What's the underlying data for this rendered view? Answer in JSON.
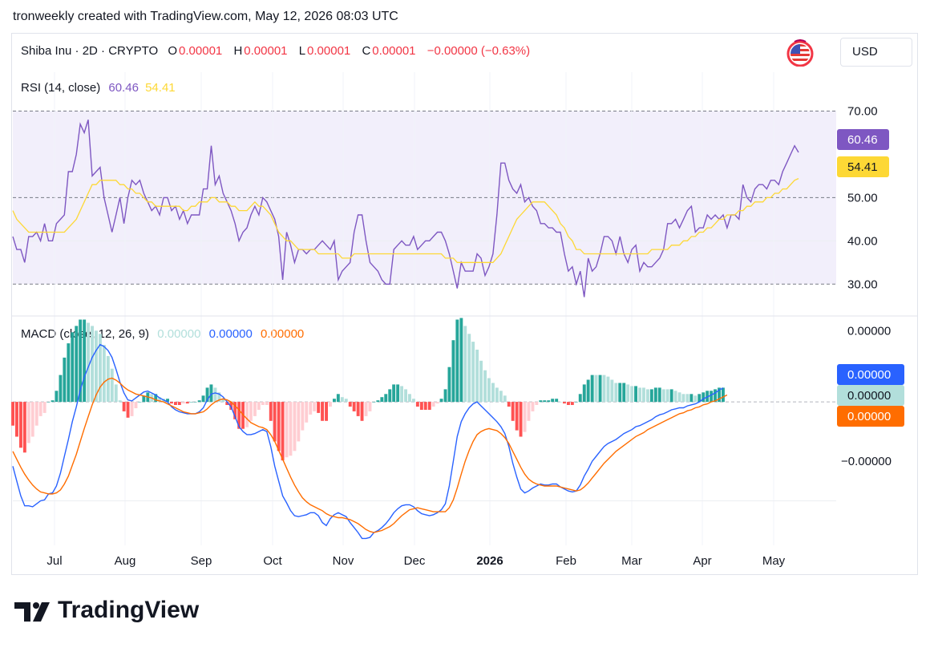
{
  "header": {
    "attribution": "tronweekly created with TradingView.com, May 12, 2026 08:03 UTC"
  },
  "symbol": {
    "title": "Shiba Inu · 2D · CRYPTO",
    "o_label": "O",
    "o_value": "0.00001",
    "h_label": "H",
    "h_value": "0.00001",
    "l_label": "L",
    "l_value": "0.00001",
    "c_label": "C",
    "c_value": "0.00001",
    "change": "−0.00000 (−0.63%)",
    "currency": "USD",
    "flag_icon": "us-flag-icon"
  },
  "colors": {
    "rsi_line": "#7e57c2",
    "rsi_ma": "#fdd835",
    "rsi_band": "#f2effb",
    "macd_line": "#2962ff",
    "signal_line": "#ff6d00",
    "hist_up_strong": "#26a69a",
    "hist_up_weak": "#b2dfdb",
    "hist_down_strong": "#ff5252",
    "hist_down_weak": "#ffcdd2",
    "down": "#f23645"
  },
  "brand": {
    "name": "TradingView"
  },
  "chart_data": [
    {
      "type": "line",
      "title": "RSI (14, close)",
      "legend_values": [
        "60.46",
        "54.41"
      ],
      "y_ticks": [
        "70.00",
        "50.00",
        "40.00",
        "30.00"
      ],
      "ylim": [
        23,
        79
      ],
      "band": [
        30,
        70
      ],
      "midline": 50,
      "last_labels": [
        {
          "text": "60.46",
          "color": "#7e57c2",
          "text_color": "#ffffff"
        },
        {
          "text": "54.41",
          "color": "#fdd835",
          "text_color": "#131722"
        }
      ],
      "series": [
        {
          "values": [
            41,
            38,
            38,
            35,
            41,
            41,
            42,
            40,
            44,
            40,
            40,
            44,
            45,
            46,
            56,
            56,
            60,
            67,
            65,
            68,
            55,
            56,
            57,
            50,
            46,
            42,
            46,
            50,
            44,
            50,
            54,
            53,
            54,
            51,
            49,
            47,
            48,
            46,
            50,
            50,
            47,
            48,
            45,
            47,
            44,
            46,
            46,
            46,
            52,
            52,
            62,
            53,
            55,
            51,
            49,
            47,
            44,
            40,
            42,
            43,
            46,
            48,
            46,
            50,
            49,
            47,
            45,
            41,
            31,
            42,
            39,
            35,
            38,
            38,
            37,
            38,
            38,
            39,
            40,
            39,
            38,
            40,
            31,
            33,
            34,
            35,
            42,
            46,
            46,
            40,
            35,
            34,
            33,
            31,
            30,
            30,
            38,
            39,
            40,
            39,
            39,
            41,
            38,
            39,
            40,
            40,
            41,
            42,
            42,
            40,
            37,
            33,
            29,
            35,
            33,
            33,
            33,
            37,
            36,
            32,
            34,
            37,
            46,
            58,
            58,
            54,
            52,
            51,
            53,
            49,
            50,
            48,
            47,
            44,
            44,
            43,
            43,
            42,
            42,
            37,
            33,
            34,
            30,
            33,
            27,
            36,
            33,
            34,
            37,
            41,
            41,
            40,
            37,
            41,
            37,
            35,
            38,
            39,
            33,
            35,
            34,
            34,
            35,
            36,
            38,
            44,
            44,
            45,
            43,
            45,
            47,
            48,
            42,
            43,
            43,
            46,
            45,
            46,
            45,
            46,
            43,
            46,
            46,
            45,
            53,
            50,
            49,
            52,
            53,
            53,
            52,
            54,
            54,
            53,
            56,
            58,
            60,
            62,
            60.46
          ]
        },
        {
          "values": [
            47,
            45,
            44,
            43,
            42,
            42,
            42,
            42,
            42,
            42,
            42,
            42,
            42,
            42,
            43,
            44,
            45,
            47,
            49,
            51,
            53,
            53,
            54,
            54,
            54,
            54,
            54,
            53,
            53,
            52,
            52,
            51,
            51,
            50,
            49,
            49,
            48,
            48,
            48,
            48,
            48,
            48,
            48,
            47,
            47,
            48,
            48,
            49,
            49,
            49,
            50,
            50,
            49,
            49,
            49,
            48,
            48,
            47,
            47,
            47,
            48,
            49,
            48,
            48,
            47,
            46,
            44,
            42,
            41,
            40,
            40,
            39,
            38,
            38,
            38,
            38,
            38,
            37,
            37,
            37,
            37,
            37,
            37,
            36,
            36,
            36,
            37,
            37,
            37,
            37,
            37,
            37,
            37,
            37,
            37,
            37,
            37,
            37,
            37,
            37,
            37,
            37,
            37,
            37,
            37,
            37,
            37,
            37,
            37,
            36,
            36,
            36,
            35,
            35,
            35,
            35,
            35,
            35,
            35,
            35,
            35,
            35,
            36,
            37,
            39,
            41,
            43,
            45,
            46,
            47,
            48,
            49,
            49,
            49,
            49,
            48,
            47,
            46,
            44,
            43,
            41,
            40,
            38,
            38,
            37,
            37,
            37,
            37,
            37,
            37,
            37,
            37,
            37,
            37,
            37,
            37,
            37,
            37,
            37,
            37,
            37,
            38,
            38,
            38,
            38,
            38,
            39,
            39,
            39,
            40,
            40,
            41,
            41,
            42,
            42,
            43,
            43,
            44,
            45,
            45,
            46,
            46,
            46,
            47,
            47,
            48,
            48,
            49,
            49,
            49,
            50,
            50,
            51,
            51,
            52,
            52,
            53,
            54,
            54.41
          ]
        }
      ]
    },
    {
      "type": "line",
      "title": "MACD (close, 12, 26, 9)",
      "legend_values": [
        "0.00000",
        "0.00000",
        "0.00000"
      ],
      "y_ticks": [
        "0.00000",
        "−0.00000"
      ],
      "ylim": [
        -1.45,
        0.82
      ],
      "last_labels": [
        {
          "text": "0.00000",
          "color": "#2962ff",
          "text_color": "#ffffff"
        },
        {
          "text": "0.00000",
          "color": "#b2dfdb",
          "text_color": "#131722"
        },
        {
          "text": "0.00000",
          "color": "#ff6d00",
          "text_color": "#ffffff"
        }
      ],
      "x_ticks": [
        "Jul",
        "Aug",
        "Sep",
        "Oct",
        "Nov",
        "Dec",
        "2026",
        "Feb",
        "Mar",
        "Apr",
        "May"
      ],
      "series": [
        {
          "name": "MACD",
          "values": [
            -0.65,
            -0.8,
            -0.95,
            -1.05,
            -1.05,
            -1.06,
            -1.03,
            -1.0,
            -0.99,
            -0.93,
            -0.92,
            -0.85,
            -0.72,
            -0.55,
            -0.38,
            -0.2,
            -0.05,
            0.12,
            0.25,
            0.35,
            0.45,
            0.52,
            0.58,
            0.56,
            0.52,
            0.45,
            0.33,
            0.2,
            0.09,
            0.02,
            0.01,
            0.04,
            0.07,
            0.1,
            0.11,
            0.09,
            0.07,
            0.04,
            0.02,
            0.0,
            -0.05,
            -0.08,
            -0.1,
            -0.11,
            -0.12,
            -0.12,
            -0.12,
            -0.1,
            -0.06,
            0.02,
            0.08,
            0.09,
            0.08,
            0.05,
            0.0,
            -0.05,
            -0.15,
            -0.25,
            -0.3,
            -0.33,
            -0.33,
            -0.32,
            -0.3,
            -0.28,
            -0.3,
            -0.45,
            -0.65,
            -0.8,
            -0.95,
            -1.02,
            -1.1,
            -1.15,
            -1.16,
            -1.15,
            -1.14,
            -1.12,
            -1.12,
            -1.15,
            -1.22,
            -1.25,
            -1.18,
            -1.14,
            -1.12,
            -1.14,
            -1.16,
            -1.22,
            -1.27,
            -1.32,
            -1.38,
            -1.38,
            -1.37,
            -1.32,
            -1.3,
            -1.27,
            -1.23,
            -1.18,
            -1.12,
            -1.08,
            -1.05,
            -1.04,
            -1.04,
            -1.06,
            -1.1,
            -1.13,
            -1.14,
            -1.15,
            -1.14,
            -1.12,
            -1.09,
            -1.03,
            -0.85,
            -0.6,
            -0.35,
            -0.2,
            -0.12,
            -0.06,
            -0.02,
            0.0,
            -0.04,
            -0.08,
            -0.12,
            -0.16,
            -0.2,
            -0.25,
            -0.32,
            -0.45,
            -0.62,
            -0.76,
            -0.88,
            -0.92,
            -0.9,
            -0.87,
            -0.85,
            -0.83,
            -0.84,
            -0.84,
            -0.83,
            -0.83,
            -0.86,
            -0.88,
            -0.9,
            -0.91,
            -0.9,
            -0.84,
            -0.75,
            -0.68,
            -0.6,
            -0.55,
            -0.5,
            -0.45,
            -0.42,
            -0.4,
            -0.38,
            -0.35,
            -0.32,
            -0.3,
            -0.28,
            -0.25,
            -0.24,
            -0.22,
            -0.2,
            -0.18,
            -0.15,
            -0.13,
            -0.12,
            -0.1,
            -0.08,
            -0.07,
            -0.06,
            -0.06,
            -0.04,
            -0.03,
            -0.02,
            0.0,
            0.03,
            0.05,
            0.07,
            0.09,
            0.12,
            0.14
          ],
          "color": "#2962ff"
        },
        {
          "name": "Signal",
          "values": [
            -0.5,
            -0.58,
            -0.66,
            -0.73,
            -0.79,
            -0.84,
            -0.88,
            -0.91,
            -0.92,
            -0.93,
            -0.93,
            -0.92,
            -0.89,
            -0.83,
            -0.75,
            -0.64,
            -0.53,
            -0.4,
            -0.27,
            -0.15,
            -0.03,
            0.07,
            0.15,
            0.2,
            0.23,
            0.24,
            0.22,
            0.19,
            0.15,
            0.12,
            0.1,
            0.08,
            0.07,
            0.06,
            0.05,
            0.04,
            0.02,
            0.01,
            0.0,
            -0.02,
            -0.04,
            -0.06,
            -0.08,
            -0.1,
            -0.11,
            -0.12,
            -0.12,
            -0.11,
            -0.1,
            -0.07,
            -0.03,
            0.0,
            0.02,
            0.03,
            0.02,
            0.0,
            -0.04,
            -0.08,
            -0.13,
            -0.17,
            -0.21,
            -0.23,
            -0.25,
            -0.26,
            -0.28,
            -0.33,
            -0.4,
            -0.49,
            -0.58,
            -0.67,
            -0.76,
            -0.84,
            -0.91,
            -0.97,
            -1.01,
            -1.04,
            -1.06,
            -1.08,
            -1.1,
            -1.13,
            -1.15,
            -1.16,
            -1.17,
            -1.17,
            -1.18,
            -1.19,
            -1.21,
            -1.23,
            -1.26,
            -1.29,
            -1.31,
            -1.32,
            -1.31,
            -1.3,
            -1.28,
            -1.26,
            -1.23,
            -1.19,
            -1.15,
            -1.12,
            -1.09,
            -1.08,
            -1.07,
            -1.08,
            -1.09,
            -1.1,
            -1.11,
            -1.11,
            -1.11,
            -1.11,
            -1.07,
            -0.99,
            -0.87,
            -0.73,
            -0.6,
            -0.49,
            -0.4,
            -0.33,
            -0.3,
            -0.28,
            -0.27,
            -0.28,
            -0.29,
            -0.32,
            -0.36,
            -0.42,
            -0.5,
            -0.58,
            -0.66,
            -0.73,
            -0.78,
            -0.81,
            -0.83,
            -0.84,
            -0.85,
            -0.85,
            -0.85,
            -0.85,
            -0.86,
            -0.87,
            -0.88,
            -0.89,
            -0.9,
            -0.89,
            -0.86,
            -0.82,
            -0.77,
            -0.72,
            -0.67,
            -0.62,
            -0.58,
            -0.54,
            -0.5,
            -0.47,
            -0.44,
            -0.41,
            -0.38,
            -0.35,
            -0.33,
            -0.31,
            -0.28,
            -0.26,
            -0.24,
            -0.22,
            -0.2,
            -0.18,
            -0.16,
            -0.14,
            -0.12,
            -0.11,
            -0.09,
            -0.08,
            -0.06,
            -0.05,
            -0.03,
            -0.02,
            0.0,
            0.01,
            0.03,
            0.05,
            0.07
          ],
          "color": "#ff6d00"
        }
      ]
    }
  ]
}
